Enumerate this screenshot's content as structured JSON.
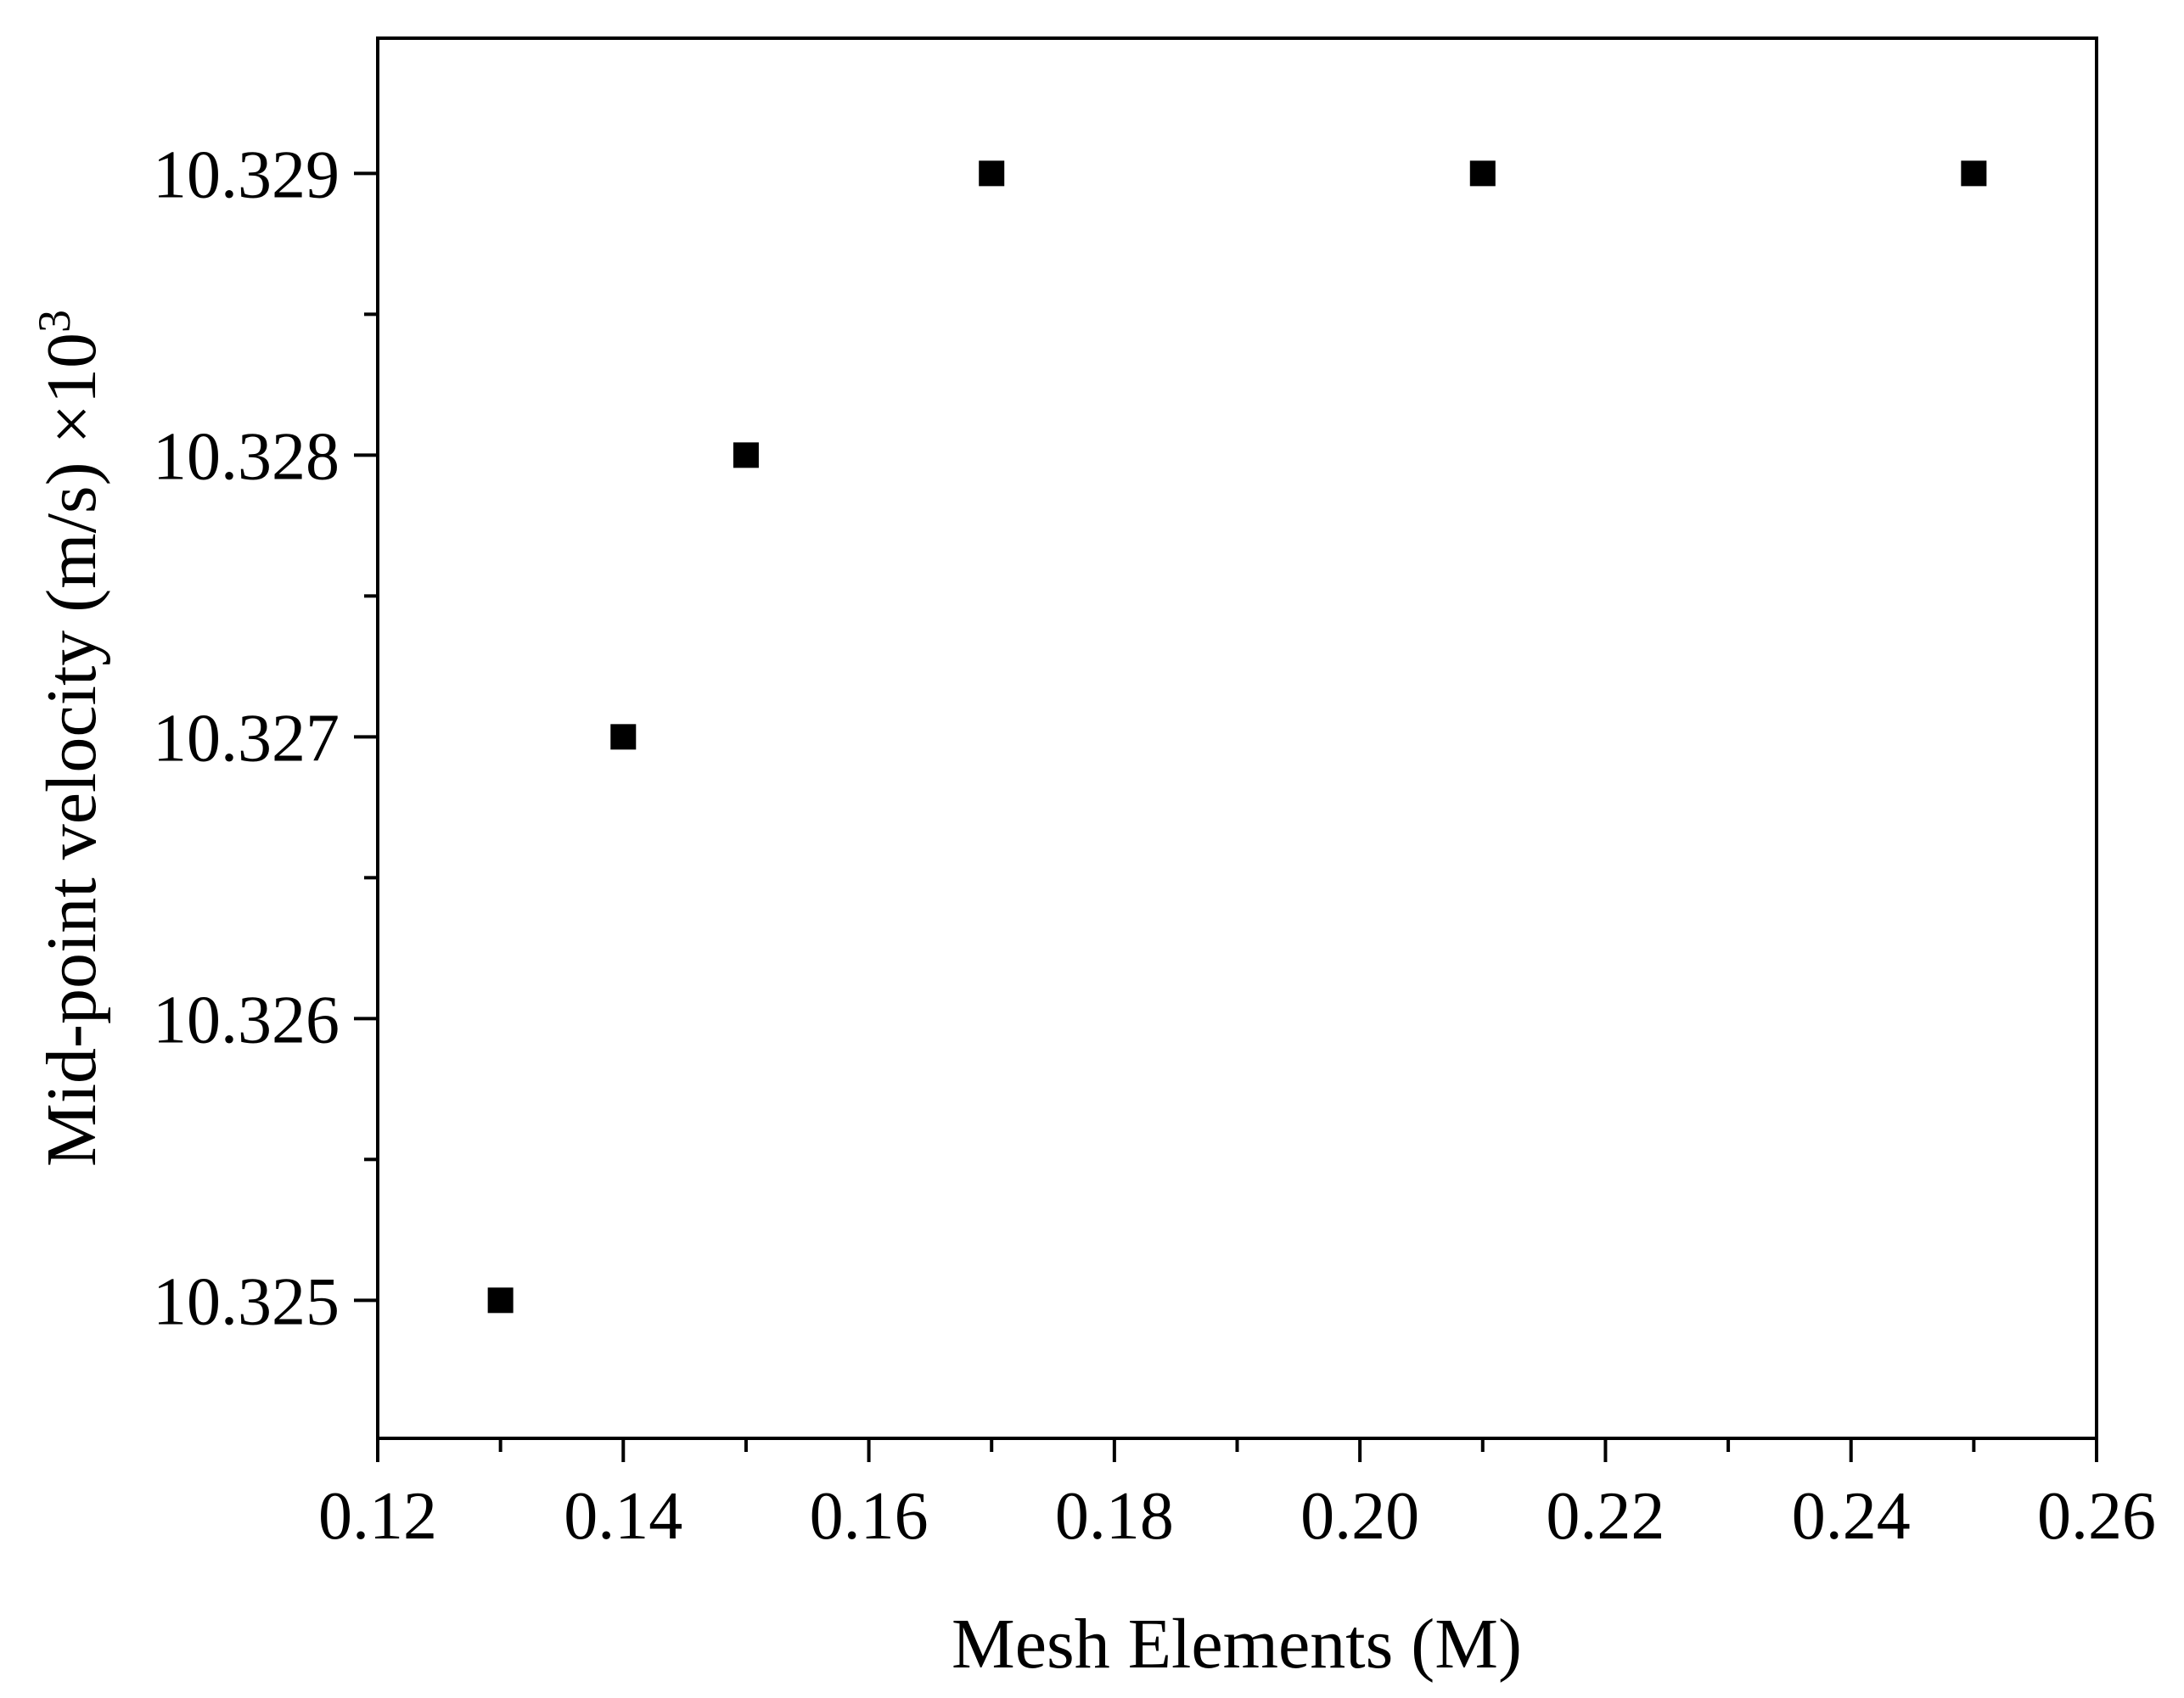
{
  "chart_data": {
    "type": "scatter",
    "xlabel": "Mesh Elements (M)",
    "ylabel": "Mid-point velocity (m/s) ×10",
    "ylabel_superscript": "3",
    "xlim": [
      0.12,
      0.26
    ],
    "ylim": [
      10.32451,
      10.32948
    ],
    "x_ticks": [
      "0.12",
      "0.14",
      "0.16",
      "0.18",
      "0.20",
      "0.22",
      "0.24",
      "0.26"
    ],
    "x_tick_values": [
      0.12,
      0.14,
      0.16,
      0.18,
      0.2,
      0.22,
      0.24,
      0.26
    ],
    "y_ticks": [
      "10.325",
      "10.326",
      "10.327",
      "10.328",
      "10.329"
    ],
    "y_tick_values": [
      10.325,
      10.326,
      10.327,
      10.328,
      10.329
    ],
    "grid": false,
    "marker": "square",
    "color": "#000000",
    "series": [
      {
        "x": [
          0.13,
          0.14,
          0.15,
          0.17,
          0.21,
          0.25
        ],
        "y": [
          10.325,
          10.327,
          10.328,
          10.329,
          10.329,
          10.329
        ]
      }
    ]
  }
}
